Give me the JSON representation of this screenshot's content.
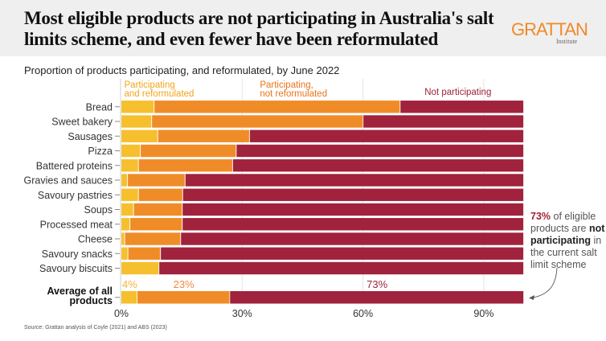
{
  "header": {
    "title": "Most eligible products are not participating in Australia's salt limits scheme, and even fewer have been reformulated",
    "logo": "GRATTAN",
    "logo_sub": "Institute"
  },
  "annotation": {
    "value": "73%",
    "text1": " of eligible products are ",
    "bold": "not participating",
    "text2": " in the current salt limit scheme"
  },
  "source": "Source: Grattan analysis of Coyle (2021) and ABS (2023)",
  "chart_data": {
    "type": "bar",
    "orientation": "horizontal-stacked",
    "title": "Proportion of products participating, and reformulated, by June 2022",
    "xlabel": "",
    "ylabel": "",
    "xlim": [
      0,
      100
    ],
    "xticks": [
      0,
      30,
      60,
      90
    ],
    "xtick_labels": [
      "0%",
      "30%",
      "60%",
      "90%"
    ],
    "grid": true,
    "legend_placement": "top (inline labels)",
    "categories": [
      "Bread",
      "Sweet bakery",
      "Sausages",
      "Pizza",
      "Battered proteins",
      "Gravies and sauces",
      "Savoury pastries",
      "Soups",
      "Processed meat",
      "Cheese",
      "Savoury snacks",
      "Savoury biscuits"
    ],
    "series": [
      {
        "name": "Participating and reformulated",
        "label_lines": [
          "Participating",
          "and reformulated"
        ],
        "color": "#f5bf2e",
        "values": [
          8.2,
          7.6,
          9.1,
          4.8,
          4.3,
          1.6,
          4.3,
          3.1,
          2.2,
          0.9,
          1.7,
          9.4
        ]
      },
      {
        "name": "Participating, not reformulated",
        "label_lines": [
          "Participating,",
          "not reformulated"
        ],
        "color": "#f08c28",
        "values": [
          61.1,
          52.5,
          22.8,
          23.8,
          23.4,
          14.3,
          11.0,
          12.1,
          13.0,
          13.9,
          8.1,
          0.0
        ]
      },
      {
        "name": "Not participating",
        "label_lines": [
          "Not participating"
        ],
        "color": "#a0223c",
        "values": [
          30.7,
          39.9,
          68.1,
          71.4,
          72.3,
          84.1,
          84.7,
          84.8,
          84.8,
          85.2,
          90.2,
          90.6
        ]
      }
    ],
    "average": {
      "label_lines": [
        "Average of all",
        "products"
      ],
      "values": [
        4,
        23,
        73
      ],
      "data_labels": [
        "4%",
        "23%",
        "73%"
      ]
    }
  }
}
